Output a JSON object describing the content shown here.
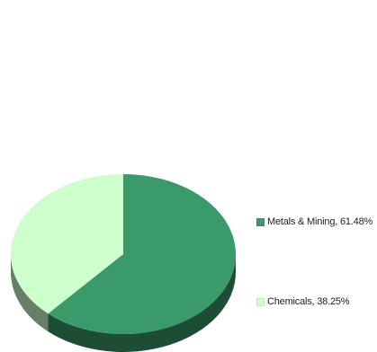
{
  "chart_data": {
    "type": "pie",
    "style": "3d",
    "title": "",
    "legend_position": "right",
    "series": [
      {
        "label": "Metals & Mining, 61.48%",
        "name": "Metals & Mining",
        "value": 61.48,
        "color": "#3a9a69",
        "side_color": "#1d4d35"
      },
      {
        "label": "Chemicals, 38.25%",
        "name": "Chemicals",
        "value": 38.25,
        "color": "#ccffcc",
        "side_color": "#667f66"
      }
    ]
  }
}
